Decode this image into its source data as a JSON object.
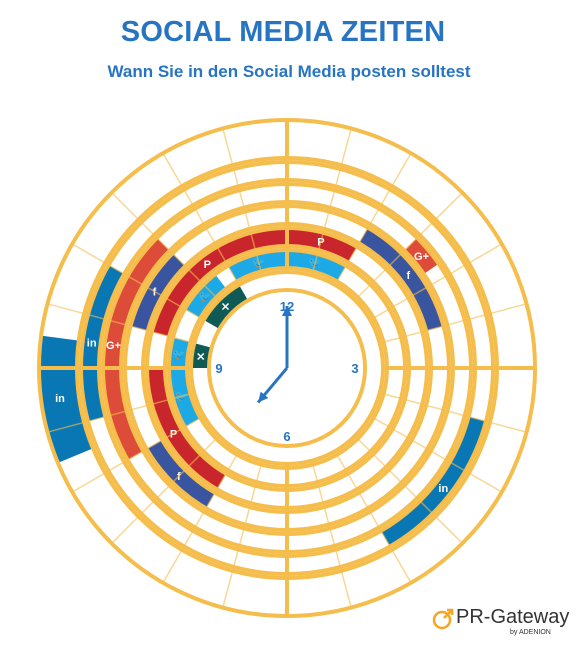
{
  "title": "SOCIAL MEDIA ZEITEN",
  "subtitle": "Wann Sie in den Social Media posten solltest",
  "clock": {
    "labels": [
      "12",
      "3",
      "6",
      "9"
    ],
    "hour": 7,
    "minute": 0
  },
  "networks": [
    {
      "key": "xing",
      "glyph": "✕",
      "color": "#0f5a55"
    },
    {
      "key": "twitter",
      "glyph": "🐦",
      "color": "#1da8e6"
    },
    {
      "key": "pinterest",
      "glyph": "P",
      "color": "#c9252c"
    },
    {
      "key": "facebook",
      "glyph": "f",
      "color": "#3a559f"
    },
    {
      "key": "googleplus",
      "glyph": "G+",
      "color": "#dd4b39"
    },
    {
      "key": "linkedin",
      "glyph": "in",
      "color": "#0a77b5"
    }
  ],
  "colors": {
    "ring": "#f5bd4c",
    "hands": "#2775c2",
    "labels": "#2775c2"
  },
  "brand": {
    "name": "PR-Gateway",
    "sub": "by ADENION"
  }
}
